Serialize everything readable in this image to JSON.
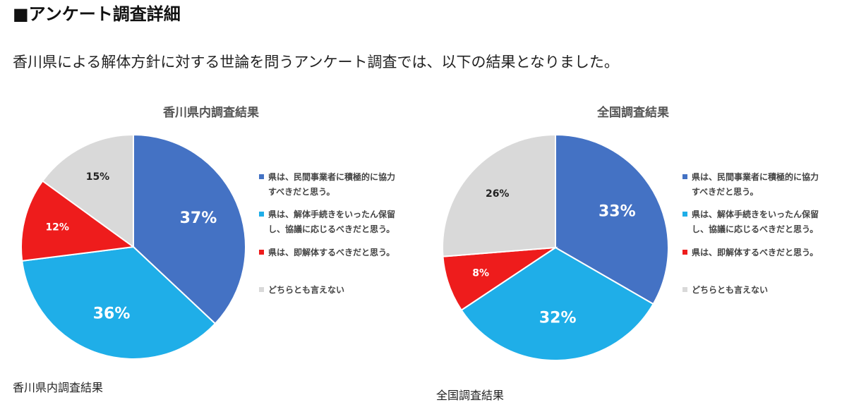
{
  "heading": "■アンケート調査詳細",
  "intro": "香川県による解体方針に対する世論を問うアンケート調査では、以下の結果となりました。",
  "colors": {
    "blue": "#4472C4",
    "light_blue": "#1FAEE8",
    "red": "#EE1C1C",
    "gray": "#D9D9D9"
  },
  "chart_data": [
    {
      "type": "pie",
      "title": "香川県内調査結果",
      "categories": [
        "県は、民間事業者に積極的に協力すべきだと思う。",
        "県は、解体手続きをいったん保留し、協議に応じるべきだと思う。",
        "県は、即解体するべきだと思う。",
        "どちらとも言えない"
      ],
      "legend_lines": [
        [
          "県は、民間事業者に積極的に協力",
          "すべきだと思う。"
        ],
        [
          "県は、解体手続きをいったん保留",
          "し、協議に応じるべきだと思う。"
        ],
        [
          "県は、即解体するべきだと思う。"
        ],
        [
          "どちらとも言えない"
        ]
      ],
      "values": [
        37,
        36,
        12,
        15
      ],
      "labels": [
        "37%",
        "36%",
        "12%",
        "15%"
      ],
      "legend_position": "right"
    },
    {
      "type": "pie",
      "title": "全国調査結果",
      "categories": [
        "県は、民間事業者に積極的に協力すべきだと思う。",
        "県は、解体手続きをいったん保留し、協議に応じるべきだと思う。",
        "県は、即解体するべきだと思う。",
        "どちらとも言えない"
      ],
      "legend_lines": [
        [
          "県は、民間事業者に積極的に協力",
          "すべきだと思う。"
        ],
        [
          "県は、解体手続きをいったん保留",
          "し、協議に応じるべきだと思う。"
        ],
        [
          "県は、即解体するべきだと思う。"
        ],
        [
          "どちらとも言えない"
        ]
      ],
      "values": [
        33,
        32,
        8,
        26
      ],
      "labels": [
        "33%",
        "32%",
        "8%",
        "26%"
      ],
      "legend_position": "right"
    }
  ],
  "captions": {
    "left": "香川県内調査結果",
    "right": "全国調査結果"
  }
}
